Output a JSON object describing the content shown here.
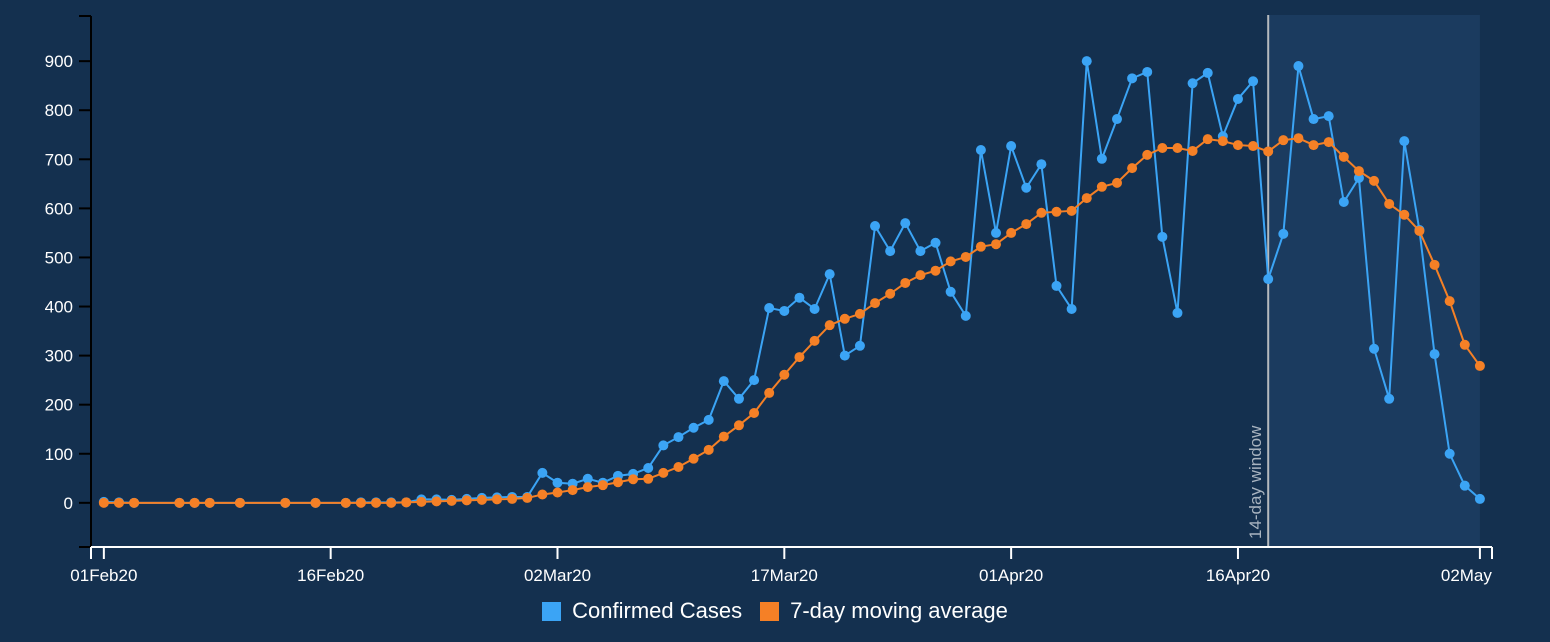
{
  "colors": {
    "background": "#14304f",
    "window_shade": "#1b3b5f",
    "confirmed": "#3ba4f5",
    "moving_average": "#f58026",
    "window_line": "#b5b9bd",
    "axis_y": "#000000",
    "axis_x": "#ffffff"
  },
  "chart_data": {
    "type": "line",
    "title": "",
    "xlabel": "",
    "ylabel": "",
    "x_start_date": "2020-02-01",
    "xlim_days": [
      -0.85,
      91.8
    ],
    "ylim": [
      -90,
      992
    ],
    "grid": false,
    "y_ticks": [
      0,
      100,
      200,
      300,
      400,
      500,
      600,
      700,
      800,
      900
    ],
    "y_tick_labels": [
      "0",
      "100",
      "200",
      "300",
      "400",
      "500",
      "600",
      "700",
      "800",
      "900"
    ],
    "x_ticks": [
      {
        "day": 0,
        "label": "01Feb20"
      },
      {
        "day": 15,
        "label": "16Feb20"
      },
      {
        "day": 30,
        "label": "02Mar20"
      },
      {
        "day": 45,
        "label": "17Mar20"
      },
      {
        "day": 60,
        "label": "01Apr20"
      },
      {
        "day": 75,
        "label": "16Apr20"
      },
      {
        "day": 91,
        "label": "02May"
      }
    ],
    "annotation": {
      "label": "14-day window",
      "start_day": 77,
      "end_day": 91
    },
    "x_days": [
      0,
      1,
      2,
      5,
      6,
      7,
      9,
      12,
      14,
      16,
      17,
      18,
      19,
      20,
      21,
      22,
      23,
      24,
      25,
      26,
      27,
      28,
      29,
      30,
      31,
      32,
      33,
      34,
      35,
      36,
      37,
      38,
      39,
      40,
      41,
      42,
      43,
      44,
      45,
      46,
      47,
      48,
      49,
      50,
      51,
      52,
      53,
      54,
      55,
      56,
      57,
      58,
      59,
      60,
      61,
      62,
      63,
      64,
      65,
      66,
      67,
      68,
      69,
      70,
      71,
      72,
      73,
      74,
      75,
      76,
      77,
      78,
      79,
      80,
      81,
      82,
      83,
      84,
      85,
      86,
      87,
      88,
      89,
      90,
      91
    ],
    "series": [
      {
        "name": "Confirmed Cases",
        "values": [
          2,
          1,
          0,
          0,
          0,
          0,
          0,
          0,
          0,
          0,
          1,
          1,
          1,
          1,
          7,
          7,
          6,
          8,
          10,
          11,
          12,
          12,
          61,
          41,
          39,
          49,
          41,
          55,
          59,
          71,
          117,
          134,
          153,
          169,
          248,
          212,
          250,
          397,
          391,
          418,
          395,
          466,
          300,
          320,
          564,
          513,
          570,
          513,
          530,
          430,
          381,
          719,
          550,
          727,
          642,
          690,
          442,
          395,
          900,
          701,
          782,
          865,
          878,
          542,
          387,
          855,
          876,
          747,
          823,
          859,
          456,
          548,
          890,
          782,
          788,
          613,
          662,
          314,
          212,
          737,
          556,
          303,
          100,
          35,
          8
        ]
      },
      {
        "name": "7-day moving average",
        "values": [
          0,
          0,
          0,
          0,
          0,
          0,
          0,
          0,
          0,
          0,
          0,
          0,
          0,
          1,
          2,
          3,
          4,
          5,
          6,
          7,
          8,
          10,
          17,
          21,
          26,
          32,
          36,
          42,
          48,
          49,
          61,
          73,
          90,
          108,
          135,
          158,
          183,
          224,
          261,
          297,
          330,
          362,
          375,
          385,
          407,
          426,
          448,
          464,
          473,
          492,
          501,
          522,
          527,
          550,
          568,
          591,
          593,
          595,
          621,
          644,
          652,
          682,
          709,
          723,
          723,
          717,
          741,
          737,
          729,
          727,
          716,
          739,
          743,
          729,
          735,
          705,
          676,
          656,
          609,
          587,
          554,
          485,
          411,
          322,
          279
        ]
      }
    ],
    "legend": [
      "Confirmed Cases",
      "7-day moving average"
    ],
    "legend_position": "bottom-center"
  }
}
